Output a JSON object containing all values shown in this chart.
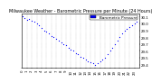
{
  "title": "Milwaukee Weather - Barometric Pressure per Minute (24 Hours)",
  "bg_color": "#ffffff",
  "plot_bg_color": "#ffffff",
  "border_color": "#000000",
  "dot_color": "#0000ff",
  "dot_size": 0.8,
  "legend_box_color": "#0000ff",
  "legend_text": "Barometric Pressure",
  "grid_color": "#999999",
  "grid_style": ":",
  "xlim": [
    0,
    24
  ],
  "ylim": [
    29.35,
    30.15
  ],
  "yticks": [
    29.4,
    29.5,
    29.6,
    29.7,
    29.8,
    29.9,
    30.0,
    30.1
  ],
  "ytick_labels": [
    "29.4",
    "29.5",
    "29.6",
    "29.7",
    "29.8",
    "29.9",
    "30.0",
    "30.1"
  ],
  "xticks": [
    0,
    1,
    2,
    3,
    4,
    5,
    6,
    7,
    8,
    9,
    10,
    11,
    12,
    13,
    14,
    15,
    16,
    17,
    18,
    19,
    20,
    21,
    22,
    23
  ],
  "data_x": [
    0.1,
    0.5,
    1.0,
    1.5,
    2.0,
    2.5,
    3.0,
    3.5,
    4.0,
    4.5,
    5.0,
    5.5,
    6.0,
    6.5,
    7.0,
    7.5,
    8.0,
    8.5,
    9.0,
    9.5,
    10.0,
    10.5,
    11.0,
    11.5,
    12.0,
    12.5,
    13.0,
    13.5,
    14.0,
    14.5,
    15.0,
    15.5,
    16.0,
    16.5,
    17.0,
    17.5,
    18.0,
    18.5,
    19.0,
    19.5,
    20.0,
    20.5,
    21.0,
    21.5,
    22.0,
    22.5,
    23.0,
    23.5
  ],
  "data_y": [
    30.1,
    30.08,
    30.05,
    30.07,
    30.04,
    30.02,
    30.0,
    29.97,
    29.93,
    29.9,
    29.88,
    29.85,
    29.82,
    29.8,
    29.78,
    29.75,
    29.72,
    29.7,
    29.68,
    29.65,
    29.62,
    29.6,
    29.57,
    29.55,
    29.52,
    29.5,
    29.48,
    29.45,
    29.43,
    29.42,
    29.4,
    29.42,
    29.45,
    29.48,
    29.5,
    29.55,
    29.6,
    29.65,
    29.7,
    29.75,
    29.8,
    29.85,
    29.9,
    29.92,
    29.95,
    29.98,
    30.0,
    30.02
  ],
  "title_fontsize": 3.5,
  "tick_fontsize": 2.8,
  "legend_fontsize": 3.0
}
